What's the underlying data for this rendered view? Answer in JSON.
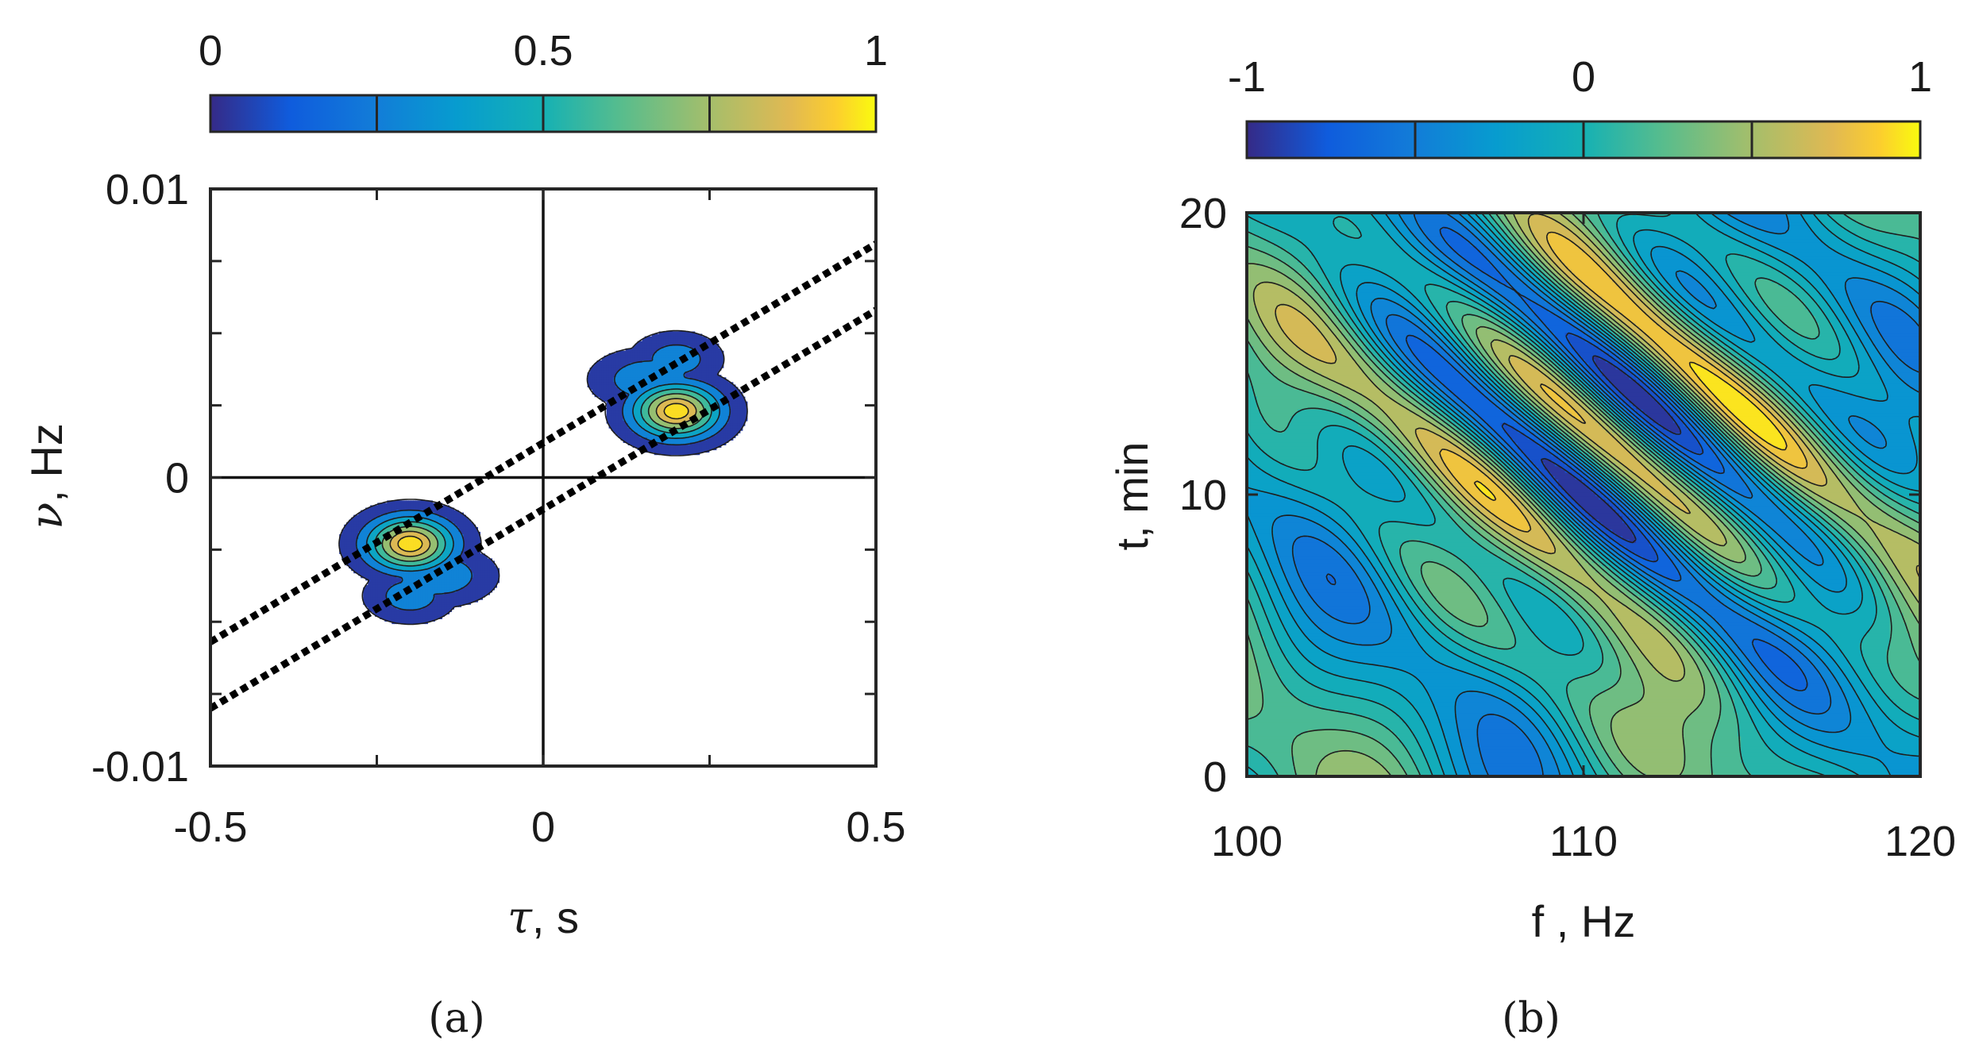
{
  "chart_data": [
    {
      "type": "heatmap",
      "panel_label": "(a)",
      "description_kind": "filled contour of normalized ambiguity magnitude",
      "xlabel_symbol": "τ",
      "xlabel_unit": ", s",
      "ylabel_symbol": "ν",
      "ylabel_unit": ", Hz",
      "xlim": [
        -0.5,
        0.5
      ],
      "ylim": [
        -0.01,
        0.01
      ],
      "x_ticks": [
        -0.5,
        0,
        0.5
      ],
      "x_tick_labels": [
        "-0.5",
        "0",
        "0.5"
      ],
      "y_ticks": [
        -0.01,
        0,
        0.01
      ],
      "y_tick_labels": [
        "-0.01",
        "0",
        "0.01"
      ],
      "x_minor_ticks": [
        -0.25,
        0.25
      ],
      "y_minor_ticks": [
        -0.0075,
        -0.005,
        -0.0025,
        0.0025,
        0.005,
        0.0075
      ],
      "crosshair": {
        "x": 0,
        "y": 0
      },
      "colorbar": {
        "min": 0,
        "max": 1,
        "ticks": [
          0,
          0.5,
          1
        ],
        "tick_labels": [
          "0",
          "0.5",
          "1"
        ],
        "separators": [
          0.25,
          0.5,
          0.75
        ]
      },
      "lobes": [
        {
          "tau": -0.2,
          "nu": -0.0023,
          "peak": 1.0,
          "s_tau": 0.045,
          "s_nu": 0.00065
        },
        {
          "tau": -0.16,
          "nu": -0.0034,
          "peak": 0.35,
          "s_tau": 0.05,
          "s_nu": 0.0006
        },
        {
          "tau": -0.2,
          "nu": -0.0041,
          "peak": 0.3,
          "s_tau": 0.04,
          "s_nu": 0.00055
        },
        {
          "tau": 0.2,
          "nu": 0.0023,
          "peak": 1.0,
          "s_tau": 0.045,
          "s_nu": 0.00065
        },
        {
          "tau": 0.16,
          "nu": 0.0034,
          "peak": 0.35,
          "s_tau": 0.05,
          "s_nu": 0.0006
        },
        {
          "tau": 0.2,
          "nu": 0.0041,
          "peak": 0.3,
          "s_tau": 0.04,
          "s_nu": 0.00055
        }
      ],
      "contour_levels": [
        0.06,
        0.2,
        0.35,
        0.5,
        0.65,
        0.8,
        0.92
      ],
      "dotted_lines": [
        {
          "x": [
            -0.5,
            0.5
          ],
          "y": [
            -0.0057,
            0.0081
          ]
        },
        {
          "x": [
            -0.5,
            0.5
          ],
          "y": [
            -0.008,
            0.0058
          ]
        }
      ]
    },
    {
      "type": "heatmap",
      "panel_label": "(b)",
      "description_kind": "filled contour of correlation",
      "xlabel": "f , Hz",
      "ylabel": "t, min",
      "xlim": [
        100,
        120
      ],
      "ylim": [
        0,
        20
      ],
      "x_ticks": [
        100,
        110,
        120
      ],
      "x_tick_labels": [
        "100",
        "110",
        "120"
      ],
      "y_ticks": [
        0,
        10,
        20
      ],
      "y_tick_labels": [
        "0",
        "10",
        "20"
      ],
      "colorbar": {
        "min": -1,
        "max": 1,
        "ticks": [
          -1,
          0,
          1
        ],
        "tick_labels": [
          "-1",
          "0",
          "1"
        ],
        "separators": [
          -0.5,
          0,
          0.5
        ]
      },
      "field": {
        "orientation_df_per_dt": 0.95,
        "stripe_period": 5.2,
        "stripe_phase": 0.9,
        "center_f": 110.8,
        "center_t": 12.5,
        "envelope_sigma": 4.2,
        "background_amplitude": 0.45
      },
      "contour_levels": [
        -0.875,
        -0.75,
        -0.625,
        -0.5,
        -0.375,
        -0.25,
        -0.125,
        0,
        0.125,
        0.25,
        0.375,
        0.5,
        0.625,
        0.75,
        0.875
      ]
    }
  ]
}
